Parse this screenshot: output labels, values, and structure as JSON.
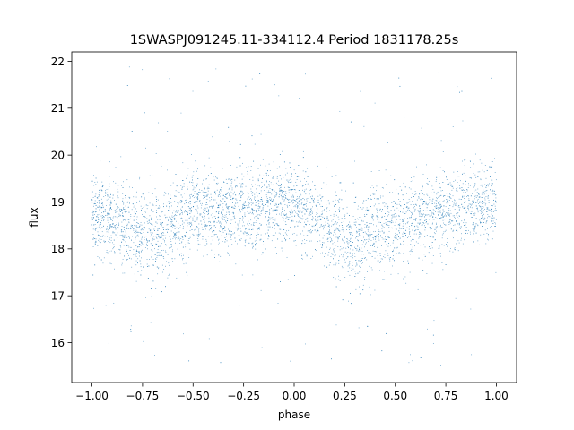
{
  "chart_data": {
    "type": "scatter",
    "title": "1SWASPJ091245.11-334112.4 Period 1831178.25s",
    "xlabel": "phase",
    "ylabel": "flux",
    "xlim": [
      -1.1,
      1.1
    ],
    "ylim": [
      15.15,
      22.2
    ],
    "x_ticks": [
      -1.0,
      -0.75,
      -0.5,
      -0.25,
      0.0,
      0.25,
      0.5,
      0.75,
      1.0
    ],
    "x_tick_labels": [
      "−1.00",
      "−0.75",
      "−0.50",
      "−0.25",
      "0.00",
      "0.25",
      "0.50",
      "0.75",
      "1.00"
    ],
    "y_ticks": [
      16,
      17,
      18,
      19,
      20,
      21,
      22
    ],
    "y_tick_labels": [
      "16",
      "17",
      "18",
      "19",
      "20",
      "21",
      "22"
    ],
    "grid": false,
    "legend": "none",
    "point_color": "#1f77b4",
    "series": [
      {
        "profile_phase": [
          -1.0,
          -0.9,
          -0.8,
          -0.7,
          -0.6,
          -0.5,
          -0.4,
          -0.3,
          -0.2,
          -0.1,
          0.0,
          0.1,
          0.2,
          0.3,
          0.4,
          0.5,
          0.6,
          0.7,
          0.8,
          0.9,
          1.0
        ],
        "profile_median_flux": [
          18.75,
          18.65,
          18.35,
          18.3,
          18.55,
          18.8,
          18.7,
          18.85,
          18.85,
          18.9,
          19.0,
          18.6,
          18.3,
          18.15,
          18.4,
          18.55,
          18.6,
          18.75,
          18.85,
          18.9,
          18.95
        ],
        "profile_spread": [
          0.55,
          0.6,
          0.65,
          0.7,
          0.65,
          0.6,
          0.6,
          0.6,
          0.55,
          0.55,
          0.55,
          0.55,
          0.6,
          0.65,
          0.65,
          0.6,
          0.6,
          0.55,
          0.55,
          0.55,
          0.55
        ]
      }
    ]
  }
}
